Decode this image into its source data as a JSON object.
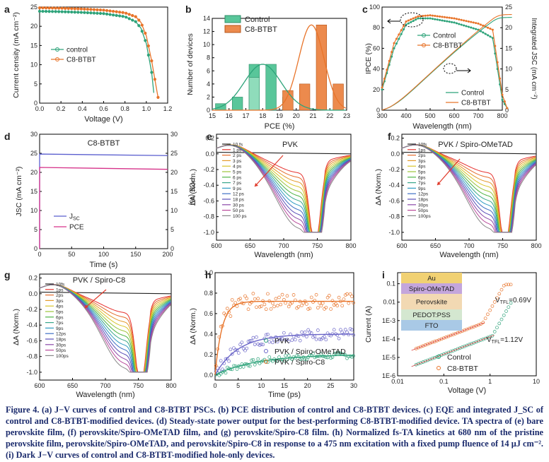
{
  "colors": {
    "control": "#2ea37a",
    "c8": "#e8742a",
    "spiro": "#6b66c8",
    "pink": "#d6338a",
    "blue": "#5b5fcf",
    "arrow": "#e03a2a"
  },
  "panels": {
    "a": {
      "label": "a",
      "ylabel": "Current censity (mA cm⁻²)",
      "xlabel": "Voltage (V)",
      "xticks": [
        "0.0",
        "0.2",
        "0.4",
        "0.6",
        "0.8",
        "1.0",
        "1.2"
      ],
      "yticks": [
        "0",
        "5",
        "10",
        "15",
        "20",
        "25"
      ],
      "legend": [
        "control",
        "C8-BTBT"
      ]
    },
    "b": {
      "label": "b",
      "ylabel": "Number of devices",
      "xlabel": "PCE (%)",
      "xticks": [
        "15",
        "16",
        "17",
        "18",
        "19",
        "20",
        "21",
        "22",
        "23"
      ],
      "yticks": [
        "0",
        "2",
        "4",
        "6",
        "8",
        "10",
        "12",
        "14"
      ],
      "legend": [
        "Control",
        "C8-BTBT"
      ]
    },
    "c": {
      "label": "c",
      "ylabel": "IPCE (%)",
      "ylabel2": "Integrated J_SC (mA cm⁻²)",
      "xlabel": "Wavelength (nm)",
      "xticks": [
        "300",
        "400",
        "500",
        "600",
        "700",
        "800"
      ],
      "yticks": [
        "0",
        "20",
        "40",
        "60",
        "80",
        "100"
      ],
      "y2ticks": [
        "0",
        "5",
        "10",
        "15",
        "20",
        "25"
      ],
      "legend_top": [
        "Control",
        "C8-BTBT"
      ],
      "legend_bottom": [
        "Control",
        "C8-BTBT"
      ]
    },
    "d": {
      "label": "d",
      "title": "C8-BTBT",
      "ylabel": "J_SC (mA cm⁻²)",
      "ylabel2": "PCE (%)",
      "xlabel": "Time (s)",
      "xticks": [
        "0",
        "50",
        "100",
        "150",
        "200"
      ],
      "yticks": [
        "0",
        "5",
        "10",
        "15",
        "20",
        "25",
        "30"
      ],
      "legend": [
        "J_SC",
        "PCE"
      ]
    },
    "e": {
      "label": "e",
      "title": "PVK",
      "ylabel": "ΔA (Norm.)",
      "xlabel": "Wavelength (nm)",
      "xticks": [
        "600",
        "650",
        "700",
        "750",
        "800"
      ],
      "yticks": [
        "0.2",
        "0.0",
        "-0.2",
        "-0.4",
        "-0.6",
        "-0.8",
        "-1.0"
      ],
      "legend": [
        "10 fs",
        "1 ps",
        "2 ps",
        "3 ps",
        "4 ps",
        "5 ps",
        "6 ps",
        "7 ps",
        "9 ps",
        "12 ps",
        "18 ps",
        "30 ps",
        "50 ps",
        "100 ps"
      ]
    },
    "f": {
      "label": "f",
      "title": "PVK / Spiro-OMeTAD",
      "ylabel": "ΔA (Norm.)",
      "xlabel": "Wavelength (nm)",
      "xticks": [
        "600",
        "650",
        "700",
        "750",
        "800"
      ],
      "yticks": [
        "0.2",
        "0.0",
        "-0.2",
        "-0.4",
        "-0.6",
        "-0.8",
        "-1.0"
      ],
      "legend": [
        "10fs",
        "1ps",
        "2ps",
        "3ps",
        "4ps",
        "5ps",
        "6ps",
        "7ps",
        "9ps",
        "12ps",
        "18ps",
        "30ps",
        "50ps",
        "100ps"
      ]
    },
    "g": {
      "label": "g",
      "title": "PVK / Spiro-C8",
      "ylabel": "ΔA (Norm.)",
      "xlabel": "Wavelength (nm)",
      "xticks": [
        "600",
        "650",
        "700",
        "750",
        "800"
      ],
      "yticks": [
        "0.2",
        "0.0",
        "-0.2",
        "-0.4",
        "-0.6",
        "-0.8",
        "-1.0"
      ],
      "legend": [
        "10fs",
        "1ps",
        "2ps",
        "3ps",
        "4ps",
        "5ps",
        "6ps",
        "7ps",
        "9ps",
        "12ps",
        "18ps",
        "30ps",
        "50ps",
        "100ps"
      ]
    },
    "h": {
      "label": "h",
      "ylabel": "ΔA (Norm.)",
      "xlabel": "Time (ps)",
      "xticks": [
        "0",
        "5",
        "10",
        "15",
        "20",
        "25",
        "30"
      ],
      "yticks": [
        "1.0",
        "0.8",
        "0.6",
        "0.4",
        "0.2",
        "0.0"
      ],
      "legend": [
        "PVK",
        "PVK / Spiro-OMeTAD",
        "PVK / Spiro-C8"
      ]
    },
    "i": {
      "label": "i",
      "ylabel": "Current (A)",
      "xlabel": "Voltage (V)",
      "xticks": [
        "0.01",
        "0.1",
        "1",
        "10"
      ],
      "yticks": [
        "0.1",
        "0.01",
        "1E-3",
        "1E-4",
        "1E-5",
        "1E-6"
      ],
      "legend": [
        "Control",
        "C8-BTBT"
      ],
      "vtfl_c8": "V_TFL=0.69V",
      "vtfl_ctrl": "V_TFL=1.12V",
      "stack": [
        "Au",
        "Spiro-OMeTAD",
        "Perovskite",
        "PEDOT:PSS",
        "FTO"
      ]
    }
  },
  "chart_data": [
    {
      "panel": "a",
      "type": "line",
      "xlabel": "Voltage (V)",
      "ylabel": "Current censity (mA cm⁻²)",
      "xlim": [
        0,
        1.2
      ],
      "ylim": [
        0,
        25
      ],
      "series": [
        {
          "name": "control",
          "x": [
            0,
            0.2,
            0.4,
            0.6,
            0.8,
            0.9,
            0.95,
            1.0,
            1.05,
            1.08
          ],
          "y": [
            23.9,
            23.8,
            23.6,
            23.3,
            22.5,
            21.2,
            19.5,
            15.5,
            8.0,
            0
          ]
        },
        {
          "name": "C8-BTBT",
          "x": [
            0,
            0.2,
            0.4,
            0.6,
            0.8,
            0.9,
            0.95,
            1.0,
            1.05,
            1.1,
            1.12
          ],
          "y": [
            24.8,
            24.7,
            24.5,
            24.2,
            23.5,
            22.5,
            21.0,
            17.5,
            11,
            3,
            0
          ]
        }
      ]
    },
    {
      "panel": "b",
      "type": "bar",
      "xlabel": "PCE (%)",
      "ylabel": "Number of devices",
      "ylim": [
        0,
        14
      ],
      "series": [
        {
          "name": "Control",
          "x": [
            15.5,
            16.5,
            17.5,
            18.5,
            19.5
          ],
          "values": [
            1,
            2,
            7,
            7,
            2
          ],
          "x2": [
            17.5
          ],
          "values2": [
            5
          ]
        },
        {
          "name": "C8-BTBT",
          "x": [
            19.5,
            20.5,
            21.5,
            22.5
          ],
          "values": [
            3,
            4,
            13,
            4
          ]
        }
      ]
    },
    {
      "panel": "c",
      "type": "line",
      "xlabel": "Wavelength (nm)",
      "ylabel": "IPCE (%)",
      "xlim": [
        300,
        850
      ],
      "ylim": [
        0,
        100
      ],
      "series": [
        {
          "name": "Control",
          "x": [
            300,
            350,
            400,
            450,
            500,
            600,
            700,
            760,
            800,
            820
          ],
          "y": [
            20,
            60,
            83,
            89,
            89,
            85,
            78,
            70,
            10,
            2
          ]
        },
        {
          "name": "C8-BTBT",
          "x": [
            300,
            350,
            400,
            450,
            500,
            600,
            700,
            760,
            800,
            820
          ],
          "y": [
            22,
            65,
            86,
            91,
            92,
            89,
            84,
            78,
            15,
            2
          ]
        }
      ]
    },
    {
      "panel": "d",
      "type": "line",
      "xlabel": "Time (s)",
      "xlim": [
        0,
        200
      ],
      "ylim": [
        0,
        30
      ],
      "series": [
        {
          "name": "J_SC",
          "x": [
            0,
            200
          ],
          "y": [
            24.8,
            24.4
          ]
        },
        {
          "name": "PCE",
          "x": [
            0,
            200
          ],
          "y": [
            21.3,
            20.8
          ]
        }
      ]
    },
    {
      "panel": "h",
      "type": "scatter",
      "xlabel": "Time (ps)",
      "xlim": [
        0,
        30
      ],
      "ylim": [
        -0.05,
        1.0
      ],
      "series": [
        {
          "name": "PVK",
          "amp": 0.2,
          "tau": 9
        },
        {
          "name": "PVK / Spiro-OMeTAD",
          "amp": 0.4,
          "tau": 5
        },
        {
          "name": "PVK / Spiro-C8",
          "amp": 0.72,
          "tau": 1.5
        }
      ]
    },
    {
      "panel": "i",
      "type": "scatter",
      "xlabel": "Voltage (V)",
      "ylabel": "Current (A)",
      "xscale": "log",
      "yscale": "log",
      "series": [
        {
          "name": "Control"
        },
        {
          "name": "C8-BTBT"
        }
      ]
    }
  ],
  "caption": {
    "fig": "Figure 4.",
    "text": "(a) J−V curves of control and C8-BTBT PSCs. (b) PCE distribution of control and C8-BTBT devices. (c) EQE and integrated J_SC of control and C8-BTBT-modified devices. (d) Steady-state power output for the best-performing C8-BTBT-modified device. TA spectra of (e) bare perovskite film, (f) perovskite/Spiro-OMeTAD film, and (g) perovskite/Spiro-C8 film. (h) Normalized fs-TA kinetics at 680 nm of the pristine perovskite film, perovskite/Spiro-OMeTAD, and perovskite/Spiro-C8 in response to a 475 nm excitation with a fixed pump fluence of 14 μJ cm⁻². (i) Dark J−V curves of control and C8-BTBT-modified hole-only devices."
  }
}
